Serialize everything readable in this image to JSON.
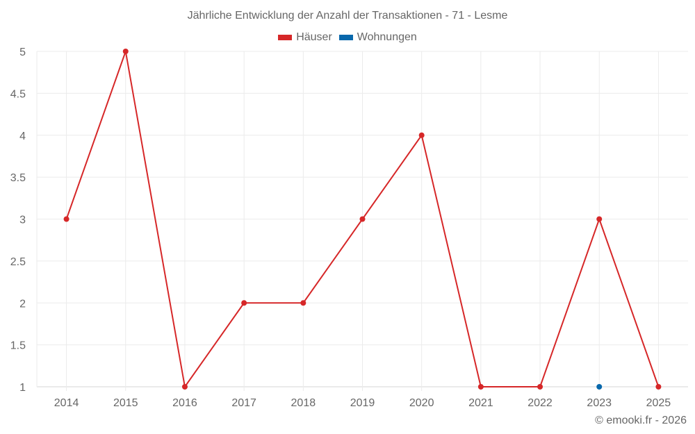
{
  "chart_data": {
    "type": "line",
    "title": "Jährliche Entwicklung der Anzahl der Transaktionen - 71 - Lesme",
    "xlabel": "",
    "ylabel": "",
    "categories": [
      "2014",
      "2015",
      "2016",
      "2017",
      "2018",
      "2019",
      "2020",
      "2021",
      "2022",
      "2023",
      "2025"
    ],
    "series": [
      {
        "name": "Häuser",
        "color": "#d62728",
        "values": [
          3,
          5,
          1,
          2,
          2,
          3,
          4,
          1,
          1,
          3,
          1
        ]
      },
      {
        "name": "Wohnungen",
        "color": "#0868ac",
        "values": [
          null,
          null,
          null,
          null,
          null,
          null,
          null,
          null,
          null,
          1,
          null
        ]
      }
    ],
    "ylim": [
      1,
      5
    ],
    "yticks": [
      1,
      1.5,
      2,
      2.5,
      3,
      3.5,
      4,
      4.5,
      5
    ],
    "ytick_labels": [
      "1",
      "1.5",
      "2",
      "2.5",
      "3",
      "3.5",
      "4",
      "4.5",
      "5"
    ],
    "grid": true,
    "legend_position": "top-center"
  },
  "header": {
    "title": "Jährliche Entwicklung der Anzahl der Transaktionen - 71 - Lesme"
  },
  "legend": {
    "items": [
      {
        "label": "Häuser",
        "color": "#d62728"
      },
      {
        "label": "Wohnungen",
        "color": "#0868ac"
      }
    ]
  },
  "footer": {
    "credit": "© emooki.fr - 2026"
  }
}
